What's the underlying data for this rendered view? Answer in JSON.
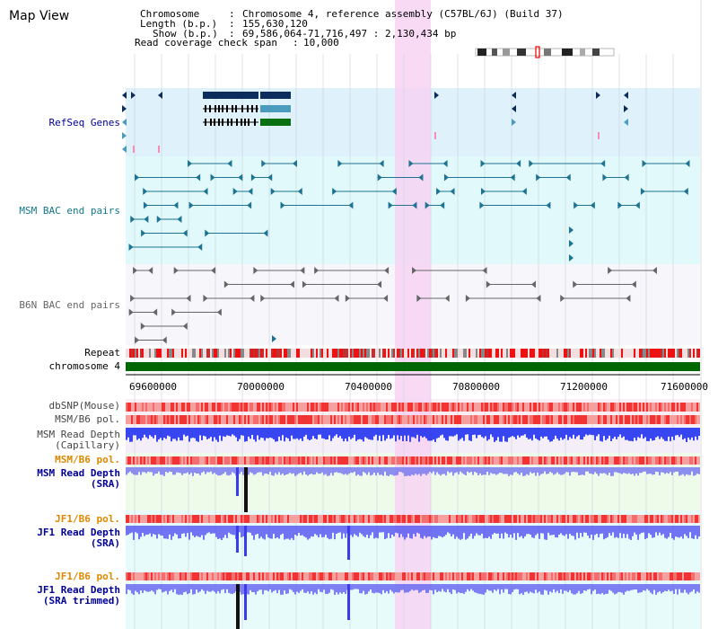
{
  "window": {
    "title": "Map View"
  },
  "info": {
    "chromosome_key": "Chromosome",
    "chromosome_value": "Chromosome 4, reference assembly (C57BL/6J) (Build 37)",
    "length_key": "Length (b.p.)",
    "length_value": "155,630,120",
    "show_key": "Show (b.p.)",
    "show_value": "69,586,064-71,716,497 : 2,130,434 bp",
    "coverage_key": "Read coverage check span",
    "coverage_value": "10,000"
  },
  "tracks": {
    "refseq": "RefSeq Genes",
    "msm_bac": "MSM BAC end pairs",
    "b6n_bac": "B6N BAC end pairs",
    "repeat": "Repeat",
    "chromosome": "chromosome 4",
    "dbsnp": "dbSNP(Mouse)",
    "msm_b6_pol_1": "MSM/B6 pol.",
    "msm_depth_cap_1": "MSM Read Depth",
    "msm_depth_cap_2": "(Capillary)",
    "msm_b6_pol_2": "MSM/B6 pol.",
    "msm_depth_sra_1": "MSM Read Depth",
    "msm_depth_sra_2": "(SRA)",
    "jf1_pol_1": "JF1/B6 pol.",
    "jf1_depth_sra_1": "JF1 Read Depth",
    "jf1_depth_sra_2": "(SRA)",
    "jf1_pol_2": "JF1/B6 pol.",
    "jf1_depth_trim_1": "JF1 Read Depth",
    "jf1_depth_trim_2": "(SRA trimmed)"
  },
  "axis": {
    "ticks": [
      "69600000",
      "70000000",
      "70400000",
      "70800000",
      "71200000",
      "71600000"
    ],
    "range": [
      69586064,
      71716497
    ]
  },
  "colors": {
    "refseq_bg": "#dff1fb",
    "msm_bg": "#e1f9fb",
    "b6n_bg": "#f6f6fb",
    "highlight": "#f7d3f3",
    "gene_navy": "#0c2c5c",
    "gene_teal": "#4a9bbd",
    "gene_green": "#087010",
    "msm_feature": "#1d7391",
    "b6n_feature": "#666666",
    "chromosome": "#006600",
    "depth": "#2233ee",
    "pol_red": "#ee2222",
    "label_blue": "#000099",
    "label_teal": "#117788",
    "label_gray": "#666666",
    "label_orange": "#dd8800"
  }
}
